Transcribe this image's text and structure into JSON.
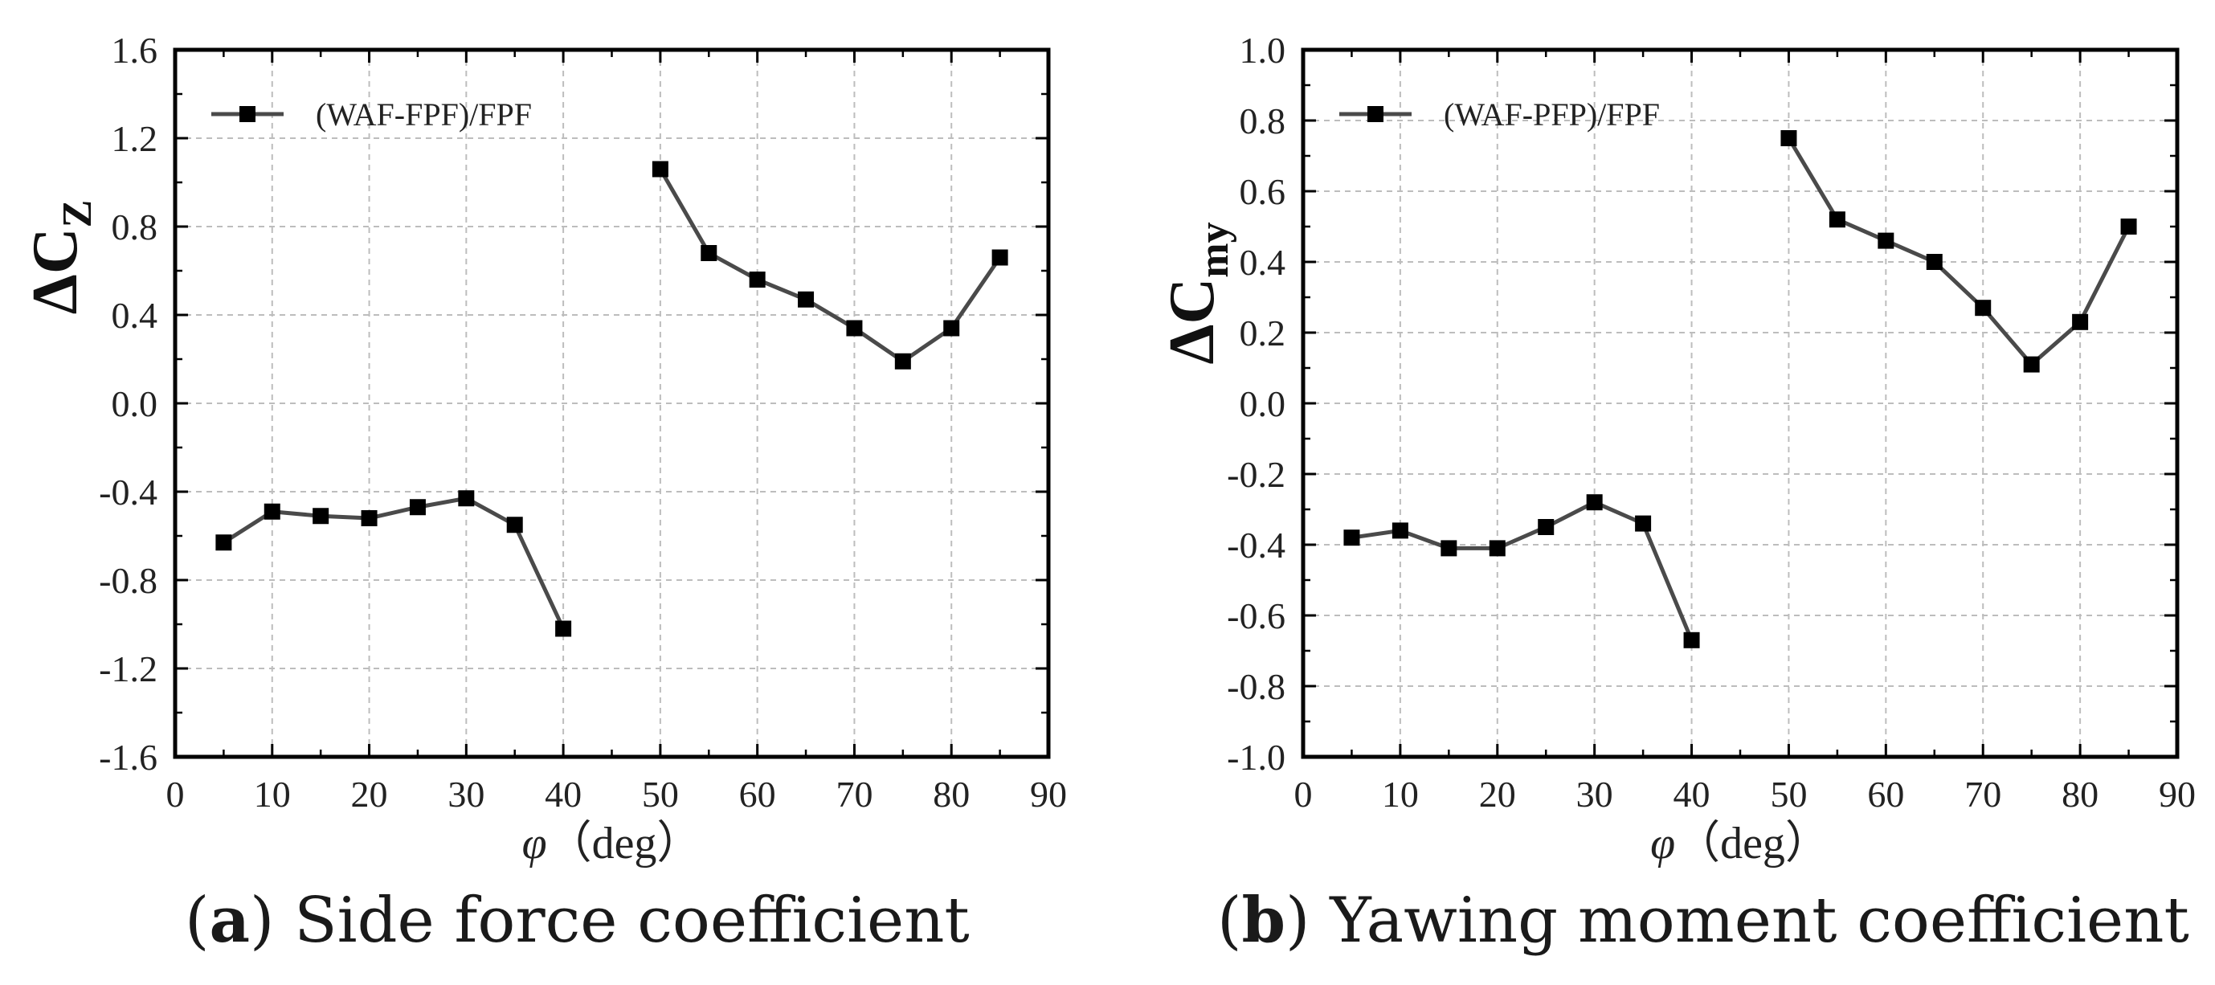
{
  "chart_data": [
    {
      "type": "line",
      "panel_label": "a",
      "caption": "Side force coefficient",
      "xlabel_symbol": "φ",
      "xlabel_unit": "（deg）",
      "ylabel_main": "ΔC",
      "ylabel_sub": "Z",
      "xlim": [
        0,
        90
      ],
      "ylim": [
        -1.6,
        1.6
      ],
      "xticks": [
        0,
        10,
        20,
        30,
        40,
        50,
        60,
        70,
        80,
        90
      ],
      "yticks": [
        -1.6,
        -1.2,
        -0.8,
        -0.4,
        0.0,
        0.4,
        0.8,
        1.2,
        1.6
      ],
      "ytick_labels": [
        "-1.6",
        "-1.2",
        "-0.8",
        "-0.4",
        "0.0",
        "0.4",
        "0.8",
        "1.2",
        "1.6"
      ],
      "grid": true,
      "legend_position": "top-left",
      "series": [
        {
          "name": "(WAF-FPF)/FPF",
          "marker": "square",
          "color": "#4a4a4a",
          "segments": [
            {
              "x": [
                5,
                10,
                15,
                20,
                25,
                30,
                35,
                40
              ],
              "y": [
                -0.63,
                -0.49,
                -0.51,
                -0.52,
                -0.47,
                -0.43,
                -0.55,
                -1.02
              ]
            },
            {
              "x": [
                50,
                55,
                60,
                65,
                70,
                75,
                80,
                85
              ],
              "y": [
                1.06,
                0.68,
                0.56,
                0.47,
                0.34,
                0.19,
                0.34,
                0.66
              ]
            }
          ]
        }
      ]
    },
    {
      "type": "line",
      "panel_label": "b",
      "caption": "Yawing moment coefficient",
      "xlabel_symbol": "φ",
      "xlabel_unit": "（deg）",
      "ylabel_main": "ΔC",
      "ylabel_sub": "my",
      "xlim": [
        0,
        90
      ],
      "ylim": [
        -1.0,
        1.0
      ],
      "xticks": [
        0,
        10,
        20,
        30,
        40,
        50,
        60,
        70,
        80,
        90
      ],
      "yticks": [
        -1.0,
        -0.8,
        -0.6,
        -0.4,
        -0.2,
        0.0,
        0.2,
        0.4,
        0.6,
        0.8,
        1.0
      ],
      "ytick_labels": [
        "-1.0",
        "-0.8",
        "-0.6",
        "-0.4",
        "-0.2",
        "0.0",
        "0.2",
        "0.4",
        "0.6",
        "0.8",
        "1.0"
      ],
      "grid": true,
      "legend_position": "top-left",
      "series": [
        {
          "name": "(WAF-PFP)/FPF",
          "marker": "square",
          "color": "#4a4a4a",
          "segments": [
            {
              "x": [
                5,
                10,
                15,
                20,
                25,
                30,
                35,
                40
              ],
              "y": [
                -0.38,
                -0.36,
                -0.41,
                -0.41,
                -0.35,
                -0.28,
                -0.34,
                -0.67
              ]
            },
            {
              "x": [
                50,
                55,
                60,
                65,
                70,
                75,
                80,
                85
              ],
              "y": [
                0.75,
                0.52,
                0.46,
                0.4,
                0.27,
                0.11,
                0.23,
                0.5
              ]
            }
          ]
        }
      ]
    }
  ]
}
